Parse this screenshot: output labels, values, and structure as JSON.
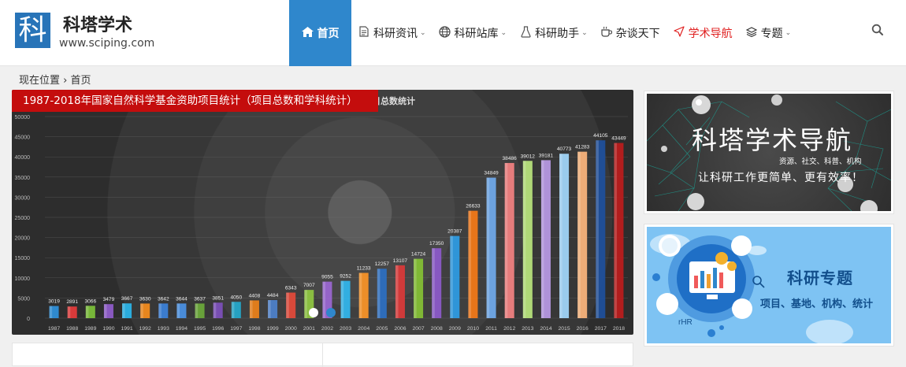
{
  "site": {
    "logo_char": "科",
    "title": "科塔学术",
    "url": "www.sciping.com"
  },
  "nav": [
    {
      "label": "首页",
      "icon": "home-icon",
      "active": true
    },
    {
      "label": "科研资讯",
      "icon": "document-icon",
      "dropdown": true
    },
    {
      "label": "科研站库",
      "icon": "globe-icon",
      "dropdown": true
    },
    {
      "label": "科研助手",
      "icon": "flask-icon",
      "dropdown": true
    },
    {
      "label": "杂谈天下",
      "icon": "coffee-icon"
    },
    {
      "label": "学术导航",
      "icon": "send-icon",
      "highlight": "#e02020"
    },
    {
      "label": "专题",
      "icon": "layers-icon",
      "dropdown": true
    }
  ],
  "breadcrumb": "现在位置 › 首页",
  "carousel": {
    "caption": "1987-2018年国家自然科学基金资助项目统计（项目总数和学科统计）",
    "chart_title_fragment": "项目总数统计",
    "active_slide": 1,
    "slide_count": 2
  },
  "chart_data": {
    "type": "bar",
    "categories": [
      "1987",
      "1988",
      "1989",
      "1990",
      "1991",
      "1992",
      "1993",
      "1994",
      "1995",
      "1996",
      "1997",
      "1998",
      "1999",
      "2000",
      "2001",
      "2002",
      "2003",
      "2004",
      "2005",
      "2006",
      "2007",
      "2008",
      "2009",
      "2010",
      "2011",
      "2012",
      "2013",
      "2014",
      "2015",
      "2016",
      "2017",
      "2018"
    ],
    "values": [
      3019,
      2891,
      3066,
      3479,
      3667,
      3630,
      3642,
      3644,
      3637,
      3851,
      4050,
      4408,
      4484,
      6343,
      7007,
      9055,
      9252,
      11233,
      12257,
      13107,
      14724,
      17350,
      20387,
      26633,
      34849,
      38486,
      39012,
      39181,
      40773,
      41283,
      44105,
      43449
    ],
    "ylim": [
      0,
      50000
    ],
    "yticks": [
      0,
      5000,
      10000,
      15000,
      20000,
      25000,
      30000,
      35000,
      40000,
      45000,
      50000
    ],
    "colors": [
      "#2f8fd8",
      "#e23b3b",
      "#7bbf3a",
      "#8e5cc8",
      "#2ab2e6",
      "#f08a1c",
      "#3b7fd6",
      "#4a8fe0",
      "#6aa63a",
      "#7b4fb8",
      "#25a6c8",
      "#e8801a",
      "#4d7fc8",
      "#e04a3a",
      "#8ec441",
      "#9a66d0",
      "#32b4ea",
      "#f59228",
      "#2d6fc0",
      "#d83a3a",
      "#84bf35",
      "#8b5ac8",
      "#2e9ae0",
      "#f07818",
      "#6fa8e8",
      "#ef7f7f",
      "#b5e07a",
      "#b597e0",
      "#9fd3f5",
      "#f7b27a",
      "#1f4f9a",
      "#b81c1c"
    ],
    "grid": true
  },
  "side": {
    "nav_banner": {
      "title": "科塔学术导航",
      "subtitle": "资源、社交、科普、机构",
      "slogan": "让科研工作更简单、更有效率！"
    },
    "topic_banner": {
      "title": "科研专题",
      "subtitle": "项目、基地、机构、统计"
    }
  }
}
